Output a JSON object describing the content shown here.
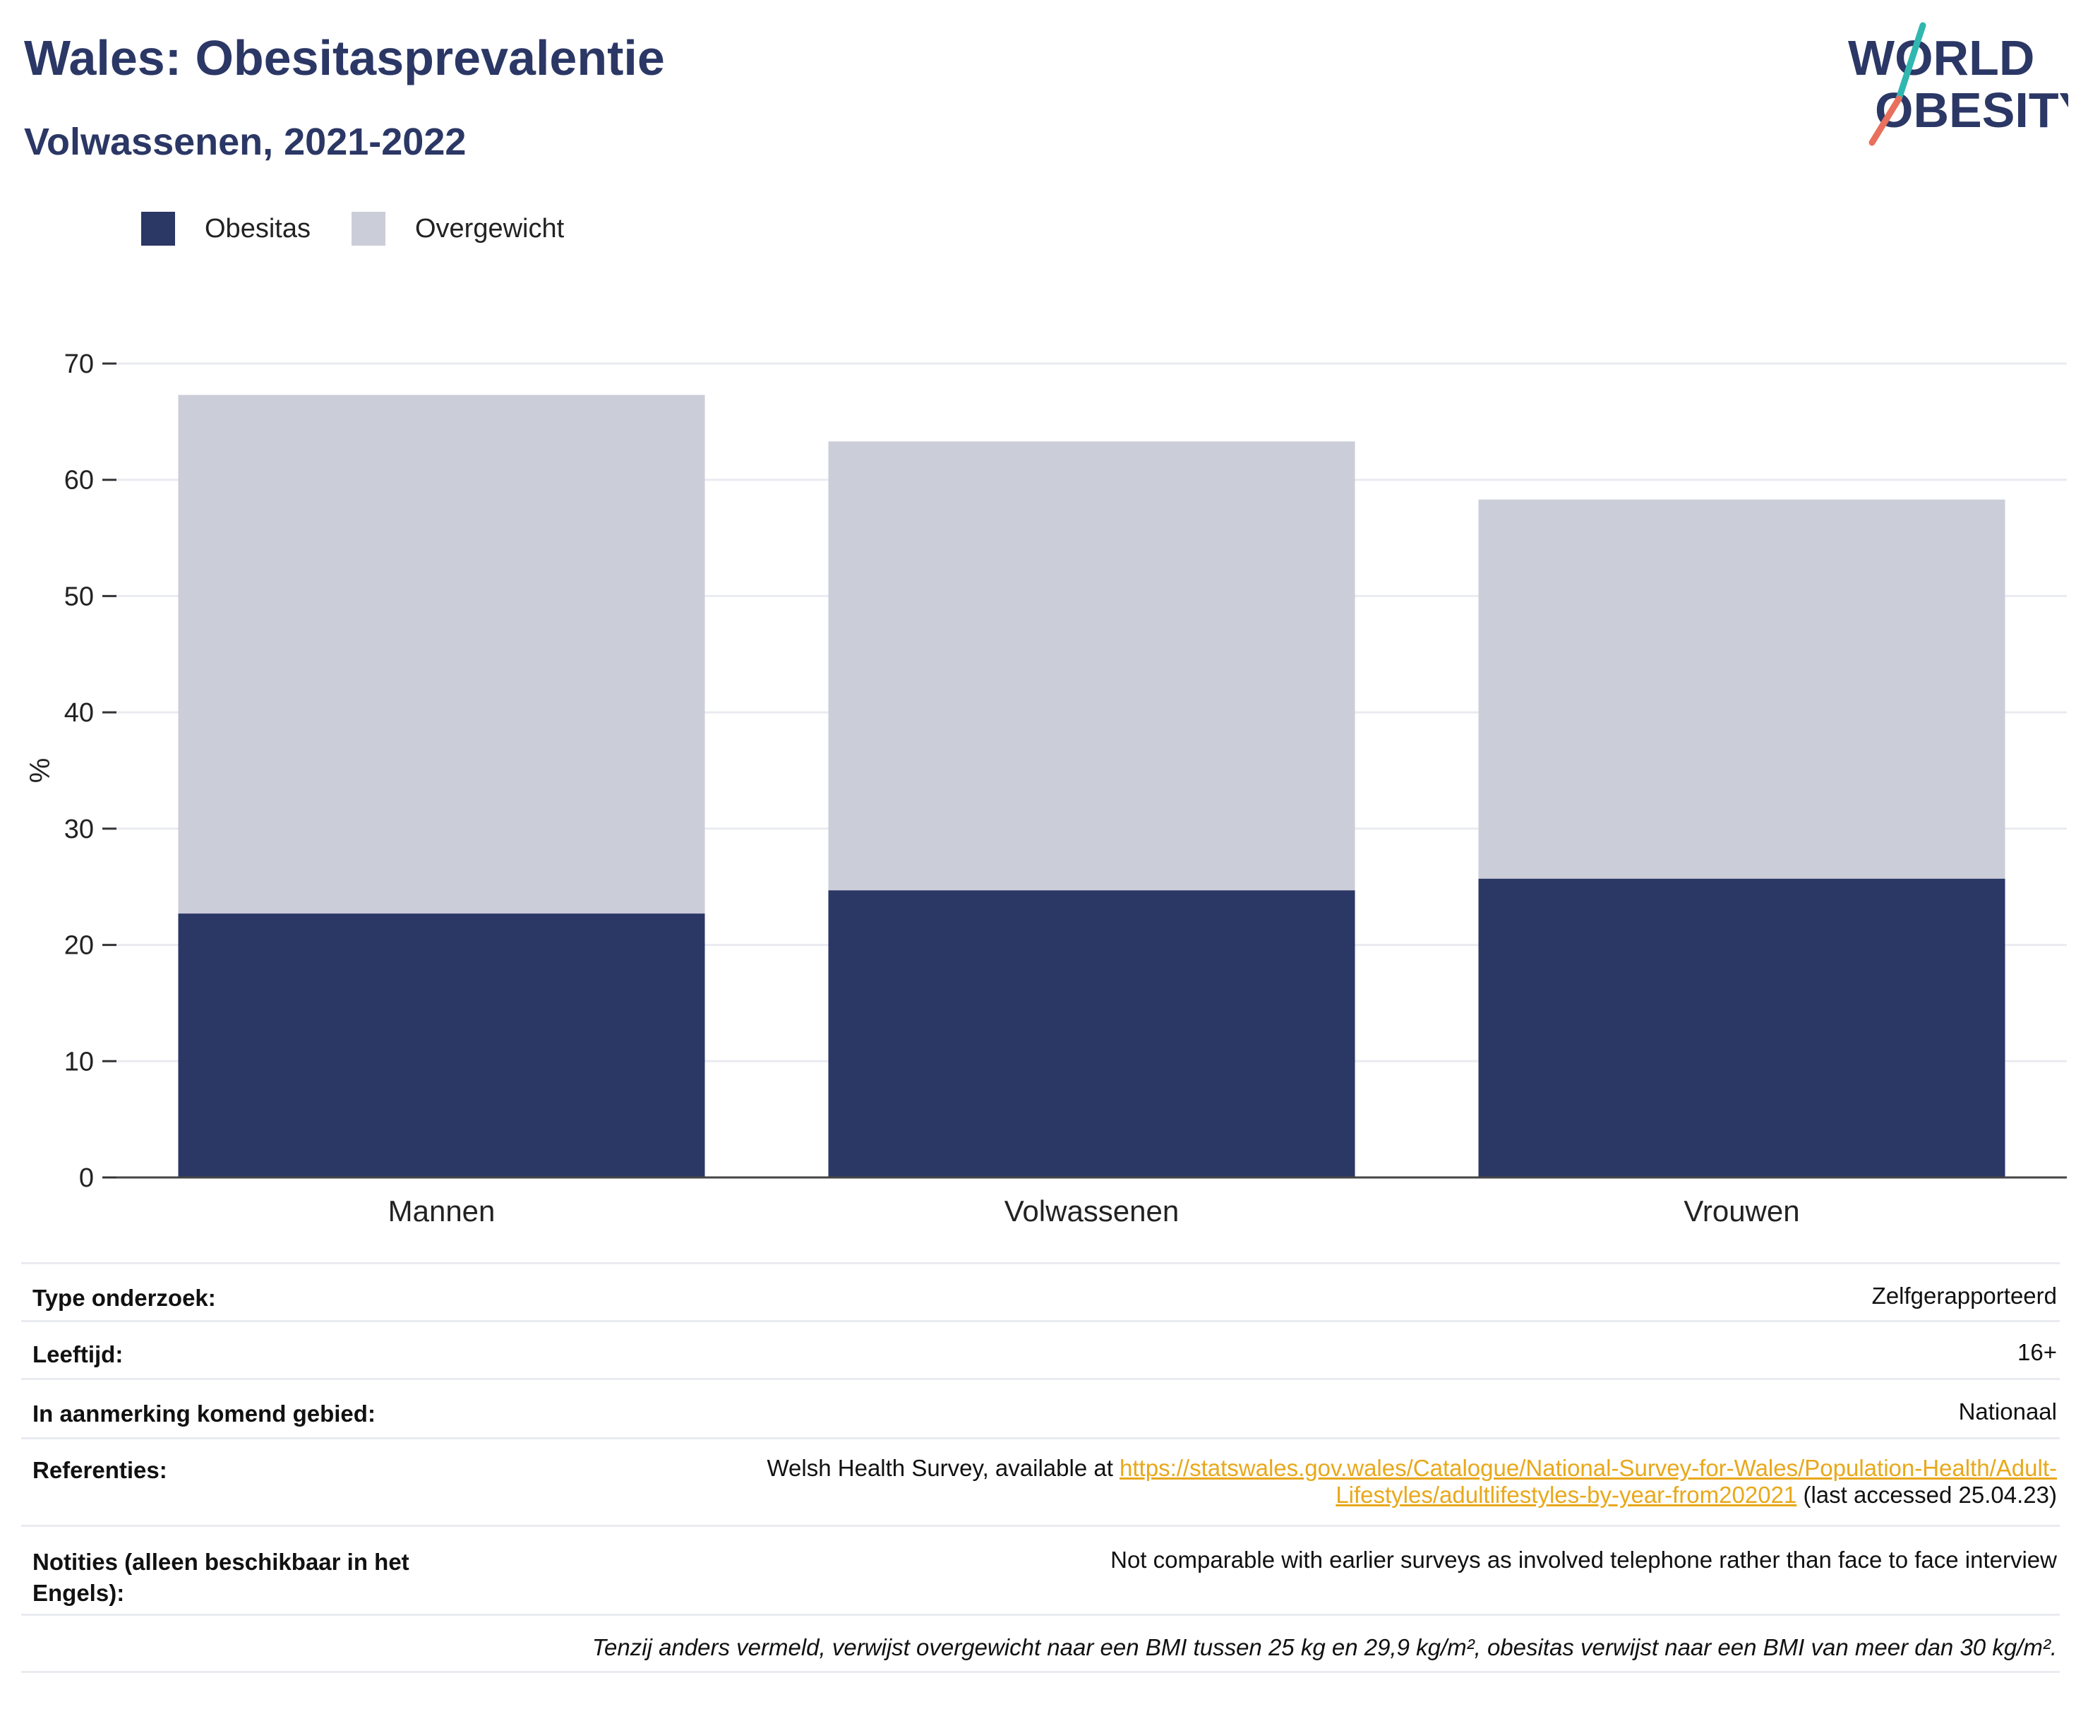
{
  "header": {
    "title": "Wales: Obesitasprevalentie",
    "subtitle": "Volwassenen, 2021-2022"
  },
  "logo": {
    "line1": "WORLD",
    "line2": "OBESITY"
  },
  "colors": {
    "obesity": "#2b3765",
    "overweight": "#cbcdd8",
    "title": "#2b3765",
    "link": "#e8a81a",
    "logo_teal": "#2fb7b0",
    "logo_coral": "#e8705c"
  },
  "chart_data": {
    "type": "bar",
    "stacked": true,
    "categories": [
      "Mannen",
      "Volwassenen",
      "Vrouwen"
    ],
    "series": [
      {
        "name": "Obesitas",
        "values": [
          22.7,
          24.7,
          25.7
        ]
      },
      {
        "name": "Overgewicht",
        "values": [
          44.6,
          38.6,
          32.6
        ]
      }
    ],
    "ylabel": "%",
    "ylim": [
      0,
      70
    ],
    "yticks": [
      0,
      10,
      20,
      30,
      40,
      50,
      60,
      70
    ],
    "grid": true,
    "legend_position": "top-left"
  },
  "info": {
    "rows": [
      {
        "label": "Type onderzoek:",
        "value": "Zelfgerapporteerd"
      },
      {
        "label": "Leeftijd:",
        "value": "16+"
      },
      {
        "label": "In aanmerking komend gebied:",
        "value": "Nationaal"
      },
      {
        "label": "Referenties:",
        "prefix": "Welsh Health Survey, available at",
        "link_line1": "https://statswales.gov.wales/Catalogue/National-Survey-for-Wales/Population-Health/Adult-",
        "link_line2": "Lifestyles/adultlifestyles-by-year-from202021",
        "suffix": "(last accessed 25.04.23)"
      },
      {
        "label": "Notities (alleen beschikbaar in het Engels):",
        "value": "Not comparable with earlier surveys as involved telephone rather than face to face interview"
      }
    ],
    "footnote": "Tenzij anders vermeld, verwijst overgewicht naar een BMI tussen 25 kg en 29,9 kg/m², obesitas verwijst naar een BMI van meer dan 30 kg/m²."
  }
}
